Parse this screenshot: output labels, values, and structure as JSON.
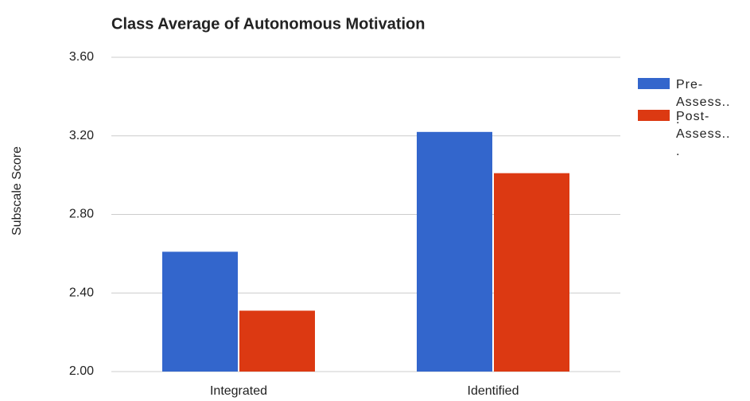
{
  "chart_data": {
    "type": "bar",
    "title": "Class Average of Autonomous Motivation",
    "y_label": "Subscale Score",
    "categories": [
      "Integrated",
      "Identified"
    ],
    "series": [
      {
        "name": "Pre-Assess...",
        "color": "#3366cc",
        "values": [
          2.61,
          3.22
        ]
      },
      {
        "name": "Post-Assess...",
        "color": "#dc3912",
        "values": [
          2.31,
          3.01
        ]
      }
    ],
    "ylim": [
      2.0,
      3.6
    ],
    "yticks": [
      {
        "value": 2.0,
        "label": "2.00"
      },
      {
        "value": 2.4,
        "label": "2.40"
      },
      {
        "value": 2.8,
        "label": "2.80"
      },
      {
        "value": 3.2,
        "label": "3.20"
      },
      {
        "value": 3.6,
        "label": "3.60"
      }
    ],
    "grid": true,
    "legend": "right"
  }
}
